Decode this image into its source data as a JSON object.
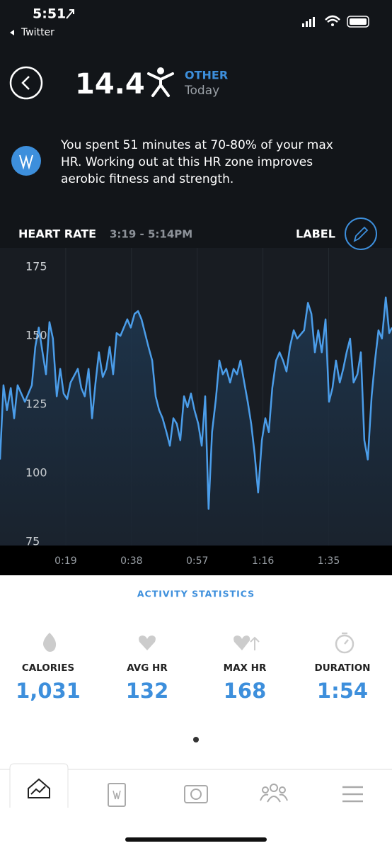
{
  "status_bar": {
    "time": "5:51",
    "back_app": "Twitter"
  },
  "header": {
    "score": "14.4",
    "activity": "OTHER",
    "date": "Today"
  },
  "insight": {
    "lines": [
      "You spent 51 minutes at 70-80% of your max",
      "HR. Working out at this HR zone improves",
      "aerobic fitness and strength."
    ]
  },
  "chart_header": {
    "title": "HEART RATE",
    "time_range": "3:19 - 5:14PM",
    "label_button": "LABEL"
  },
  "chart_data": {
    "type": "line",
    "x": [
      0,
      1,
      2,
      3.1,
      4.1,
      5.1,
      7.2,
      9.2,
      10.2,
      11.2,
      12.3,
      13.3,
      14.3,
      15.3,
      16.4,
      17.4,
      18.4,
      19.4,
      20.4,
      22.5,
      23.5,
      24.5,
      25.6,
      26.6,
      27.6,
      28.6,
      29.7,
      30.7,
      31.7,
      32.7,
      33.7,
      34.8,
      36.8,
      37.8,
      38.9,
      39.9,
      40.9,
      41.9,
      42.9,
      44,
      45,
      46,
      47,
      48.1,
      49.1,
      50.1,
      51.1,
      52.1,
      53.2,
      54.2,
      55.2,
      56.2,
      57.3,
      58.3,
      59.3,
      60.3,
      61.3,
      62.4,
      63.4,
      64.4,
      65.4,
      66.5,
      67.5,
      68.5,
      69.5,
      70.6,
      71.6,
      72.6,
      73.6,
      74.6,
      75.7,
      76.7,
      77.7,
      78.7,
      79.8,
      80.8,
      81.8,
      82.8,
      83.8,
      84.9,
      85.9,
      87.9,
      89,
      90,
      91,
      92,
      93,
      94.1,
      95.1,
      96.1,
      97.1,
      98.2,
      99.2,
      100.2,
      101.2,
      102.2,
      103.3,
      104.3,
      105.3,
      106.3,
      107.4,
      108.4,
      109.4,
      110.4,
      111.5,
      112.5,
      113.3
    ],
    "values": [
      105,
      132,
      123,
      131,
      120,
      132,
      126,
      132,
      146,
      153,
      144,
      136,
      155,
      149,
      128,
      138,
      129,
      127,
      133,
      138,
      131,
      128,
      138,
      120,
      133,
      144,
      135,
      138,
      146,
      136,
      151,
      150,
      156,
      153,
      158,
      159,
      156,
      151,
      146,
      141,
      128,
      123,
      120,
      115,
      110,
      120,
      118,
      112,
      128,
      124,
      129,
      123,
      118,
      110,
      128,
      87,
      115,
      127,
      141,
      136,
      138,
      133,
      138,
      136,
      141,
      133,
      126,
      118,
      107,
      93,
      112,
      120,
      115,
      131,
      141,
      144,
      141,
      137,
      146,
      152,
      149,
      152,
      162,
      158,
      144,
      152,
      144,
      156,
      126,
      131,
      141,
      133,
      138,
      144,
      149,
      133,
      136,
      144,
      112,
      105,
      128,
      141,
      152,
      149,
      164,
      151,
      153
    ],
    "color": "#4b9de9",
    "xlim": [
      0,
      113.3
    ],
    "xticks": [
      {
        "value": 19,
        "label": "0:19"
      },
      {
        "value": 38,
        "label": "0:38"
      },
      {
        "value": 57,
        "label": "0:57"
      },
      {
        "value": 76,
        "label": "1:16"
      },
      {
        "value": 95,
        "label": "1:35"
      }
    ],
    "ylim": [
      75,
      180
    ],
    "yticks": [
      75,
      100,
      125,
      150,
      175
    ],
    "grid": true
  },
  "statistics": {
    "title": "ACTIVITY STATISTICS",
    "items": [
      {
        "label": "CALORIES",
        "value": "1,031"
      },
      {
        "label": "AVG HR",
        "value": "132"
      },
      {
        "label": "MAX HR",
        "value": "168"
      },
      {
        "label": "DURATION",
        "value": "1:54"
      }
    ]
  }
}
